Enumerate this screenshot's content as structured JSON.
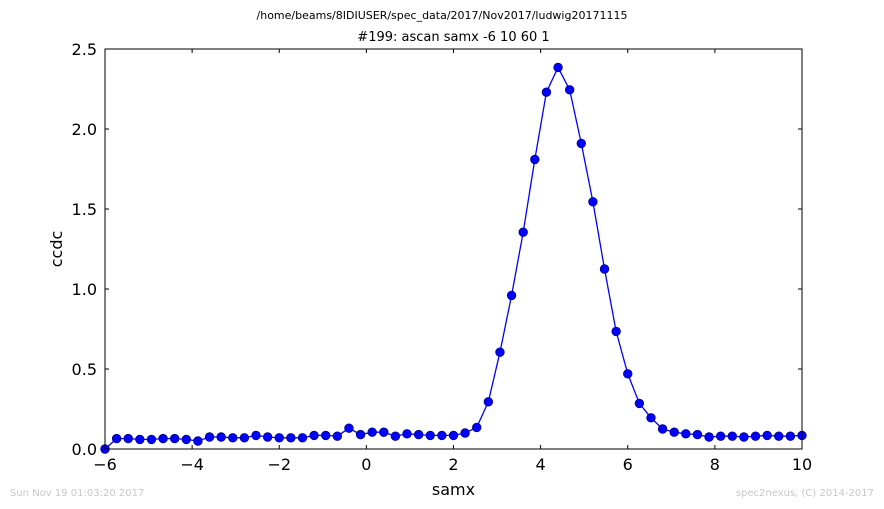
{
  "header": {
    "path": "/home/beams/8IDIUSER/spec_data/2017/Nov2017/ludwig20171115"
  },
  "footer": {
    "timestamp": "Sun Nov 19 01:03:20 2017",
    "credit": "spec2nexus, (C) 2014-2017"
  },
  "colors": {
    "line": "#0000ff",
    "marker_fill": "#0000ff",
    "marker_edge": "#000080"
  },
  "chart_data": {
    "type": "line",
    "title": "#199: ascan  samx -6 10  60 1",
    "xlabel": "samx",
    "ylabel": "ccdc",
    "xlim": [
      -6,
      10
    ],
    "ylim": [
      0,
      2.5
    ],
    "xticks": [
      -6,
      -4,
      -2,
      0,
      2,
      4,
      6,
      8,
      10
    ],
    "xtick_labels": [
      "−6",
      "−4",
      "−2",
      "0",
      "2",
      "4",
      "6",
      "8",
      "10"
    ],
    "yticks": [
      0,
      0.5,
      1,
      1.5,
      2,
      2.5
    ],
    "ytick_labels": [
      "0.0",
      "0.5",
      "1.0",
      "1.5",
      "2.0",
      "2.5"
    ],
    "grid": false,
    "markers": "circle",
    "series": [
      {
        "x": [
          -6.0,
          -5.7333,
          -5.4667,
          -5.2,
          -4.9333,
          -4.6667,
          -4.4,
          -4.1333,
          -3.8667,
          -3.6,
          -3.3333,
          -3.0667,
          -2.8,
          -2.5333,
          -2.2667,
          -2.0,
          -1.7333,
          -1.4667,
          -1.2,
          -0.9333,
          -0.6667,
          -0.4,
          -0.1333,
          0.1333,
          0.4,
          0.6667,
          0.9333,
          1.2,
          1.4667,
          1.7333,
          2.0,
          2.2667,
          2.5333,
          2.8,
          3.0667,
          3.3333,
          3.6,
          3.8667,
          4.1333,
          4.4,
          4.6667,
          4.9333,
          5.2,
          5.4667,
          5.7333,
          6.0,
          6.2667,
          6.5333,
          6.8,
          7.0667,
          7.3333,
          7.6,
          7.8667,
          8.1333,
          8.4,
          8.6667,
          8.9333,
          9.2,
          9.4667,
          9.7333,
          10.0
        ],
        "y": [
          0.0,
          0.065,
          0.065,
          0.06,
          0.06,
          0.065,
          0.065,
          0.06,
          0.05,
          0.075,
          0.075,
          0.07,
          0.07,
          0.085,
          0.075,
          0.07,
          0.07,
          0.07,
          0.085,
          0.085,
          0.08,
          0.13,
          0.09,
          0.105,
          0.105,
          0.08,
          0.095,
          0.09,
          0.085,
          0.085,
          0.085,
          0.1,
          0.135,
          0.295,
          0.605,
          0.96,
          1.355,
          1.81,
          2.23,
          2.385,
          2.245,
          1.91,
          1.545,
          1.125,
          0.735,
          0.47,
          0.285,
          0.195,
          0.125,
          0.105,
          0.095,
          0.09,
          0.075,
          0.08,
          0.08,
          0.075,
          0.08,
          0.085,
          0.08,
          0.08,
          0.085
        ]
      }
    ]
  }
}
